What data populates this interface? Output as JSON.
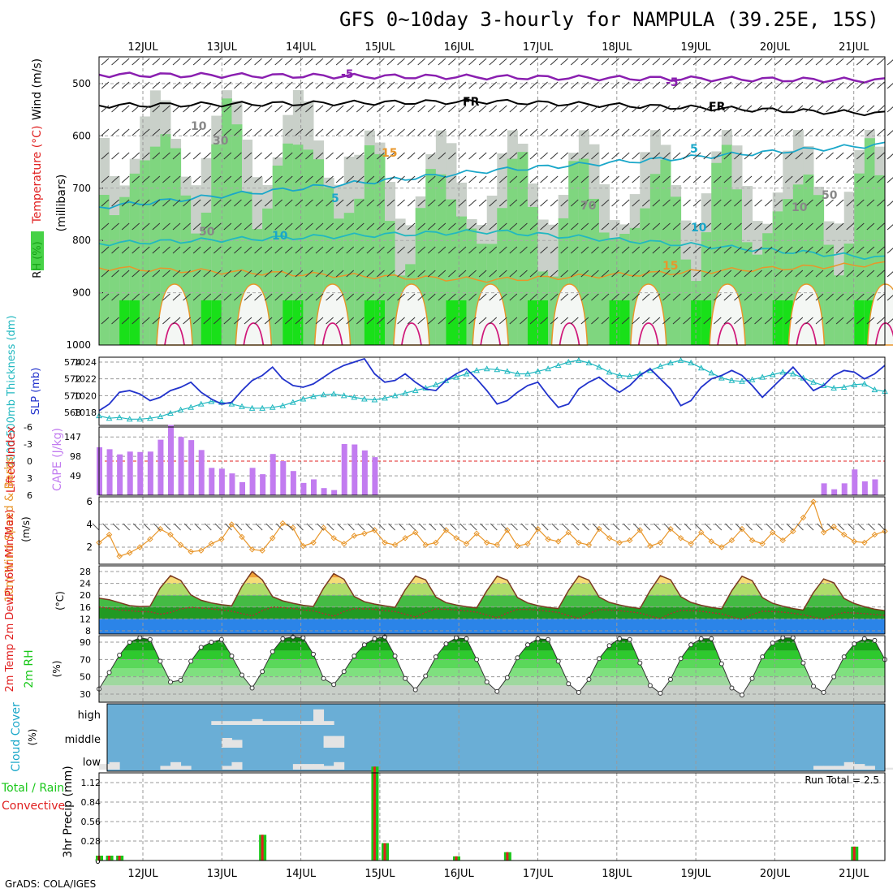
{
  "title": "GFS 0~10day 3-hourly for NAMPULA (39.25E, 15S)",
  "credit": "GrADS: COLA/IGES",
  "dates": [
    "12JUL",
    "13JUL",
    "14JUL",
    "15JUL",
    "16JUL",
    "17JUL",
    "18JUL",
    "19JUL",
    "20JUL",
    "21JUL"
  ],
  "colors": {
    "purple": "#8a1fb0",
    "cyan": "#1aa7c9",
    "blue": "#2233cc",
    "teal": "#22b8c0",
    "orange": "#e8962a",
    "magenta": "#d0197a",
    "violet": "#c27cf0",
    "green": "#19c719",
    "red": "#e02020",
    "cloud_bg": "#6aaed6",
    "cloud_bar": "#e4e4e4",
    "rh_grey": "#c8cec8"
  },
  "panels": {
    "upper_air": {
      "ylabel_rh": "RH (%)",
      "ylabel_temp": "Temperature (°C)",
      "ylabel_wind": "Wind (m/s)",
      "ylabel_pressure": "(millibars)",
      "yticks": [
        "500",
        "600",
        "700",
        "800",
        "900",
        "1000"
      ],
      "contour_labels": [
        {
          "text": "-5",
          "color": "purple"
        },
        {
          "text": "-5",
          "color": "purple"
        },
        {
          "text": "FR",
          "color": "black"
        },
        {
          "text": "FR",
          "color": "black"
        },
        {
          "text": "5",
          "color": "cyan"
        },
        {
          "text": "5",
          "color": "cyan"
        },
        {
          "text": "10",
          "color": "cyan"
        },
        {
          "text": "10",
          "color": "cyan"
        },
        {
          "text": "15",
          "color": "orange"
        },
        {
          "text": "15",
          "color": "orange"
        },
        {
          "text": "50",
          "color": "grey"
        },
        {
          "text": "50",
          "color": "grey"
        },
        {
          "text": "70",
          "color": "grey"
        },
        {
          "text": "30",
          "color": "grey"
        },
        {
          "text": "10",
          "color": "grey"
        },
        {
          "text": "10",
          "color": "grey"
        }
      ]
    },
    "thickness_slp": {
      "ylabel_thickness": "1000-500mb Thickness (dm)",
      "ylabel_slp": "SLP (mb)",
      "yticks_thickness": [
        "568",
        "570",
        "572",
        "574"
      ],
      "yticks_slp": [
        "1018",
        "1020",
        "1022",
        "1024"
      ]
    },
    "cape_li": {
      "ylabel_li": "Lifted Index",
      "ylabel_cape": "CAPE (J/kg)",
      "yticks_li": [
        "-6",
        "-3",
        "0",
        "3",
        "6"
      ],
      "yticks_cape": [
        "147",
        "98",
        "49"
      ]
    },
    "wind10m": {
      "ylabel": "10m Wind Speed & Barbs",
      "ylabel_unit": "(m/s)",
      "yticks": [
        "2",
        "4",
        "6"
      ]
    },
    "temp2m": {
      "ylabel": "2m Temp 2m DewPt (6hr Min/Max)",
      "ylabel_unit": "(°C)",
      "yticks": [
        "8",
        "12",
        "16",
        "20",
        "24",
        "28"
      ]
    },
    "rh2m": {
      "ylabel": "2m RH",
      "ylabel_unit": "(%)",
      "yticks": [
        "30",
        "50",
        "70",
        "90"
      ]
    },
    "cloud": {
      "ylabel": "Cloud Cover",
      "ylabel_unit": "(%)",
      "levels": [
        "high",
        "middle",
        "low"
      ]
    },
    "precip": {
      "ylabel": "3hr Precip (mm)",
      "ylabel_legend_total": "Total / Rain",
      "ylabel_legend_conv": "Convective",
      "yticks": [
        "0",
        "0.28",
        "0.56",
        "0.84",
        "1.12"
      ],
      "run_total": "Run Total = 2.5"
    }
  },
  "chart_data": {
    "type": "meteogram",
    "x_time_steps": 78,
    "date_labels": [
      "12JUL",
      "13JUL",
      "14JUL",
      "15JUL",
      "16JUL",
      "17JUL",
      "18JUL",
      "19JUL",
      "20JUL",
      "21JUL"
    ],
    "slp_mb": [
      1018.2,
      1019,
      1020.4,
      1020.6,
      1020.2,
      1019.4,
      1019.8,
      1020.6,
      1021,
      1021.6,
      1020.4,
      1019.6,
      1019,
      1019.2,
      1020.6,
      1021.8,
      1022.4,
      1023.4,
      1022,
      1021.2,
      1021,
      1021.4,
      1022.2,
      1023,
      1023.6,
      1024,
      1024.4,
      1022.6,
      1021.6,
      1021.8,
      1022.6,
      1021.6,
      1020.8,
      1020.6,
      1021.8,
      1022.6,
      1023.2,
      1022,
      1020.6,
      1019,
      1019.4,
      1020.4,
      1021.2,
      1021.6,
      1020,
      1018.6,
      1019,
      1020.8,
      1021.6,
      1022.2,
      1021.2,
      1020.4,
      1021.2,
      1022.4,
      1023.2,
      1022,
      1020.8,
      1018.8,
      1019.4,
      1021,
      1022,
      1022.4,
      1023,
      1022.4,
      1021.2,
      1019.8,
      1021,
      1022.2,
      1023.4,
      1022,
      1020.6,
      1021.2,
      1022.4,
      1023,
      1022.8,
      1022,
      1022.6,
      1023.6
    ],
    "thickness_dm": [
      567.6,
      567.3,
      567.4,
      567.2,
      567.2,
      567.3,
      567.5,
      567.9,
      568.3,
      568.6,
      569,
      569.3,
      569.2,
      569,
      568.7,
      568.5,
      568.5,
      568.6,
      568.8,
      569.2,
      569.6,
      569.9,
      570.1,
      570.2,
      570,
      569.8,
      569.6,
      569.5,
      569.7,
      570,
      570.3,
      570.6,
      570.9,
      571.3,
      571.8,
      572.2,
      572.6,
      573,
      573.2,
      573.1,
      572.9,
      572.6,
      572.6,
      572.9,
      573.2,
      573.6,
      574,
      574.2,
      573.9,
      573.4,
      572.8,
      572.4,
      572.3,
      572.6,
      573,
      573.5,
      573.9,
      574.2,
      573.9,
      573.3,
      572.7,
      572.1,
      571.8,
      571.7,
      571.9,
      572.2,
      572.5,
      572.8,
      572.6,
      572.1,
      571.6,
      571.2,
      570.9,
      571,
      571.3,
      571.4,
      570.7,
      570.5
    ],
    "cape_jkg": [
      121,
      116,
      103,
      110,
      109,
      110,
      140,
      177,
      147,
      139,
      114,
      69,
      67,
      55,
      33,
      69,
      53,
      104,
      86,
      61,
      31,
      40,
      18,
      13,
      129,
      128,
      113,
      96,
      0,
      0,
      0,
      0,
      0,
      0,
      0,
      0,
      0,
      0,
      0,
      0,
      0,
      0,
      0,
      0,
      0,
      0,
      0,
      0,
      0,
      0,
      0,
      0,
      0,
      0,
      0,
      0,
      0,
      0,
      0,
      0,
      0,
      0,
      0,
      0,
      0,
      0,
      0,
      0,
      0,
      0,
      0,
      30,
      15,
      30,
      65,
      35,
      40,
      0
    ],
    "wind10m_ms": [
      2.4,
      3.1,
      1.2,
      1.5,
      2,
      2.7,
      3.6,
      3.1,
      2.2,
      1.6,
      1.7,
      2.3,
      2.7,
      4,
      2.9,
      1.8,
      1.7,
      2.8,
      4.1,
      3.7,
      2.1,
      2.4,
      3.7,
      2.8,
      2.3,
      3,
      3.2,
      3.5,
      2.4,
      2.2,
      2.8,
      3.3,
      2.2,
      2.4,
      3.5,
      2.8,
      2.3,
      3.2,
      2.4,
      2.2,
      3.5,
      2.1,
      2.3,
      3.6,
      2.7,
      2.5,
      3.3,
      2.4,
      2.2,
      3.6,
      2.8,
      2.4,
      2.6,
      3.5,
      2.1,
      2.4,
      3.6,
      2.8,
      2.3,
      3.3,
      2.5,
      2,
      2.6,
      3.6,
      2.6,
      2.3,
      3.3,
      2.6,
      3.4,
      4.6,
      6,
      3.3,
      3.8,
      3.1,
      2.5,
      2.4,
      3.1,
      3.4
    ],
    "temp2m_c": [
      19,
      18.5,
      17.5,
      16.5,
      16.2,
      16.3,
      22.5,
      26.6,
      25,
      20.1,
      18.3,
      17.4,
      16.8,
      16.4,
      23,
      28,
      25.2,
      19.5,
      18.1,
      17.3,
      16.6,
      16.2,
      22.4,
      27.3,
      25.4,
      19.6,
      17.8,
      17,
      16.4,
      15.9,
      21.8,
      26.5,
      25.2,
      19.4,
      17.5,
      16.7,
      16.1,
      15.7,
      21.5,
      26.4,
      25.1,
      19.2,
      17.4,
      16.5,
      15.9,
      15.5,
      21.6,
      26.5,
      25.1,
      19.4,
      17.6,
      16.7,
      16,
      15.5,
      21.6,
      26.6,
      25.2,
      19.5,
      17.6,
      16.6,
      15.9,
      15.4,
      21.5,
      26.4,
      24.9,
      19.2,
      17.3,
      16.3,
      15.5,
      15,
      20.9,
      25.5,
      24.2,
      18.9,
      17.2,
      16.1,
      15.3,
      14.8
    ],
    "dewpt2m_c": [
      16,
      15.6,
      15,
      14.8,
      14.5,
      14.4,
      13.6,
      14.2,
      15.4,
      15.9,
      15.7,
      15.4,
      15,
      14.6,
      13.8,
      13,
      14.8,
      16,
      15.8,
      15.5,
      15,
      14.7,
      13.8,
      12.9,
      14.5,
      15.5,
      15.4,
      15.2,
      14.8,
      14.5,
      13.6,
      12.6,
      14.2,
      15.4,
      15.2,
      15,
      14.7,
      14.3,
      13.3,
      12.4,
      14,
      15.2,
      15.2,
      15,
      14.6,
      14.2,
      13.1,
      12.2,
      13.9,
      15.1,
      15,
      14.8,
      14.4,
      14,
      13,
      12.1,
      13.8,
      14.9,
      14.8,
      14.6,
      14.1,
      13.7,
      12.7,
      11.8,
      13.5,
      14.6,
      14.5,
      14.3,
      13.9,
      13.4,
      12.6,
      11.9,
      13.3,
      14.2,
      14,
      13.8,
      13.5,
      13.2
    ],
    "rh2m_pct": [
      36,
      55,
      75,
      90,
      95,
      93,
      68,
      44,
      46,
      68,
      84,
      90,
      93,
      74,
      52,
      37,
      56,
      79,
      94,
      96,
      95,
      76,
      48,
      41,
      56,
      74,
      87,
      94,
      96,
      74,
      48,
      35,
      51,
      73,
      88,
      95,
      94,
      70,
      44,
      33,
      49,
      72,
      87,
      94,
      93,
      68,
      42,
      32,
      47,
      71,
      86,
      94,
      93,
      66,
      40,
      31,
      47,
      71,
      87,
      94,
      94,
      65,
      37,
      29,
      48,
      73,
      89,
      95,
      95,
      66,
      39,
      32,
      50,
      73,
      88,
      94,
      92,
      70
    ],
    "cloud_low_pct": [
      30,
      40,
      0,
      0,
      0,
      0,
      20,
      40,
      20,
      0,
      0,
      0,
      20,
      40,
      0,
      0,
      0,
      0,
      0,
      30,
      30,
      30,
      20,
      40,
      0,
      0,
      0,
      0,
      0,
      0,
      0,
      0,
      0,
      0,
      0,
      0,
      0,
      0,
      0,
      0,
      0,
      0,
      0,
      0,
      0,
      0,
      0,
      0,
      0,
      0,
      0,
      0,
      0,
      0,
      0,
      0,
      0,
      0,
      0,
      0,
      0,
      0,
      0,
      0,
      0,
      0,
      0,
      0,
      0,
      0,
      20,
      20,
      20,
      40,
      30,
      20,
      0,
      10
    ],
    "cloud_mid_pct": [
      0,
      0,
      0,
      0,
      0,
      0,
      0,
      0,
      0,
      0,
      0,
      0,
      50,
      40,
      0,
      0,
      0,
      0,
      0,
      0,
      0,
      0,
      60,
      60,
      0,
      0,
      0,
      0,
      0,
      0,
      0,
      0,
      0,
      0,
      0,
      0,
      0,
      0,
      0,
      0,
      0,
      0,
      0,
      0,
      0,
      0,
      0,
      0,
      0,
      0,
      0,
      0,
      0,
      0,
      0,
      0,
      0,
      0,
      0,
      0,
      0,
      0,
      0,
      0,
      0,
      0,
      0,
      0,
      0,
      0,
      0,
      0,
      0,
      0,
      0,
      0,
      0,
      0
    ],
    "cloud_high_pct": [
      0,
      0,
      0,
      0,
      0,
      0,
      0,
      0,
      0,
      0,
      0,
      20,
      20,
      20,
      20,
      30,
      20,
      20,
      20,
      20,
      20,
      80,
      20,
      0,
      0,
      0,
      0,
      0,
      0,
      0,
      0,
      0,
      0,
      0,
      0,
      0,
      0,
      0,
      0,
      0,
      0,
      0,
      0,
      0,
      0,
      0,
      0,
      0,
      0,
      0,
      0,
      0,
      0,
      0,
      0,
      0,
      0,
      0,
      0,
      0,
      0,
      0,
      0,
      0,
      0,
      0,
      0,
      0,
      0,
      0,
      0,
      0,
      0,
      0,
      0,
      0,
      0,
      0
    ],
    "precip_total_mm": [
      0.07,
      0.07,
      0.07,
      0,
      0,
      0,
      0,
      0,
      0,
      0,
      0,
      0,
      0,
      0,
      0,
      0,
      0.37,
      0,
      0,
      0,
      0,
      0,
      0,
      0,
      0,
      0,
      0,
      1.35,
      0.25,
      0,
      0,
      0,
      0,
      0,
      0,
      0.06,
      0,
      0,
      0,
      0,
      0.12,
      0,
      0,
      0,
      0,
      0,
      0,
      0,
      0,
      0,
      0,
      0,
      0,
      0,
      0,
      0,
      0,
      0,
      0,
      0,
      0,
      0,
      0,
      0,
      0,
      0,
      0,
      0,
      0,
      0,
      0,
      0,
      0,
      0,
      0.2,
      0,
      0,
      0
    ],
    "precip_conv_mm": [
      0.07,
      0.07,
      0.07,
      0,
      0,
      0,
      0,
      0,
      0,
      0,
      0,
      0,
      0,
      0,
      0,
      0,
      0.37,
      0,
      0,
      0,
      0,
      0,
      0,
      0,
      0,
      0,
      0,
      1.35,
      0.25,
      0,
      0,
      0,
      0,
      0,
      0,
      0.06,
      0,
      0,
      0,
      0,
      0.12,
      0,
      0,
      0,
      0,
      0,
      0,
      0,
      0,
      0,
      0,
      0,
      0,
      0,
      0,
      0,
      0,
      0,
      0,
      0,
      0,
      0,
      0,
      0,
      0,
      0,
      0,
      0,
      0,
      0,
      0,
      0,
      0,
      0,
      0.2,
      0,
      0,
      0
    ]
  }
}
